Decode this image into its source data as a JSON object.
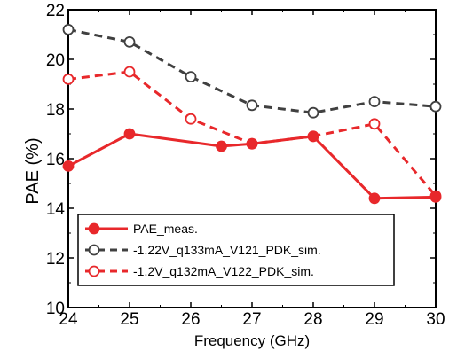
{
  "chart_data": {
    "type": "line",
    "xlabel": "Frequency (GHz)",
    "ylabel": "PAE (%)",
    "xlim": [
      24,
      30
    ],
    "ylim": [
      10,
      22
    ],
    "xticks": [
      24,
      25,
      26,
      27,
      28,
      29,
      30
    ],
    "yticks": [
      10,
      12,
      14,
      16,
      18,
      20,
      22
    ],
    "grid": false,
    "legend_position": "bottom-left",
    "series": [
      {
        "name": "PAE_meas.",
        "color": "#e8282b",
        "line": "solid",
        "marker": "filled-circle",
        "x": [
          24,
          25,
          26.5,
          27,
          28,
          29,
          30
        ],
        "y": [
          15.7,
          17.0,
          16.5,
          16.6,
          16.9,
          14.4,
          14.45
        ]
      },
      {
        "name": "-1.22V_q133mA_V121_PDK_sim.",
        "color": "#404040",
        "line": "dashed",
        "marker": "open-circle",
        "x": [
          24,
          25,
          26,
          27,
          28,
          29,
          30
        ],
        "y": [
          21.2,
          20.7,
          19.3,
          18.15,
          17.85,
          18.3,
          18.1
        ]
      },
      {
        "name": "-1.2V_q132mA_V122_PDK_sim.",
        "color": "#e8282b",
        "line": "dashed",
        "marker": "open-circle",
        "x": [
          24,
          25,
          26,
          27,
          28,
          29,
          30
        ],
        "y": [
          19.2,
          19.5,
          17.6,
          16.6,
          16.9,
          17.4,
          14.5
        ]
      }
    ]
  }
}
